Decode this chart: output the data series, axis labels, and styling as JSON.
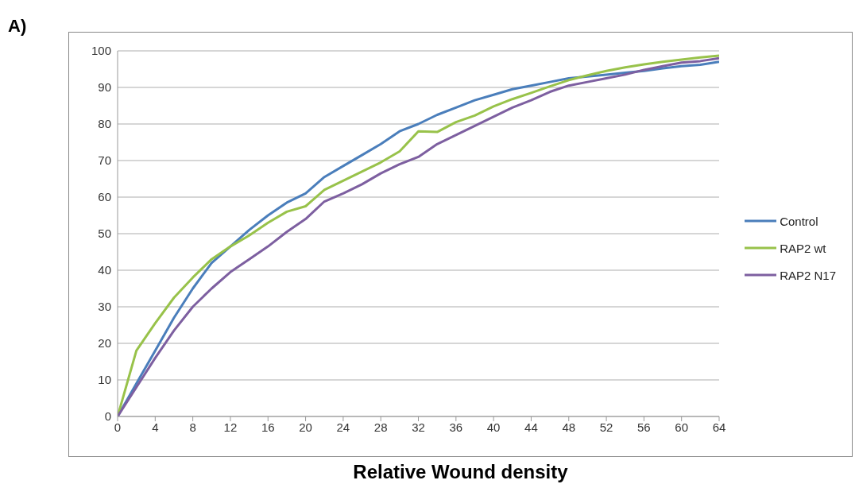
{
  "chart_data": {
    "type": "line",
    "xlabel": "Relative Wound density",
    "annotations": [
      "A)"
    ],
    "x": [
      0,
      2,
      4,
      6,
      8,
      10,
      12,
      14,
      16,
      18,
      20,
      22,
      24,
      26,
      28,
      30,
      32,
      34,
      36,
      38,
      40,
      42,
      44,
      46,
      48,
      50,
      52,
      54,
      56,
      58,
      60,
      62,
      64
    ],
    "series": [
      {
        "name": "Control",
        "color": "#4a7ebb",
        "values": [
          0,
          9,
          18,
          27,
          35,
          42,
          46.5,
          51,
          55,
          58.5,
          61,
          65.5,
          68.5,
          71.5,
          74.5,
          78,
          80,
          82.5,
          84.5,
          86.5,
          88,
          89.5,
          90.5,
          91.5,
          92.5,
          93,
          93.5,
          94,
          94.5,
          95.2,
          95.8,
          96.2,
          97
        ]
      },
      {
        "name": "RAP2 wt",
        "color": "#98c24a",
        "values": [
          0,
          18,
          25.5,
          32.5,
          38,
          43,
          46.5,
          49.5,
          53,
          56,
          57.5,
          62,
          64.5,
          67,
          69.5,
          72.5,
          78,
          77.8,
          80.5,
          82.3,
          84.8,
          86.8,
          88.5,
          90.3,
          92,
          93.3,
          94.5,
          95.5,
          96.3,
          97,
          97.6,
          98.2,
          98.7
        ]
      },
      {
        "name": "RAP2 N17",
        "color": "#7d5fa0",
        "values": [
          0,
          8,
          16,
          23.5,
          30,
          35,
          39.5,
          43,
          46.5,
          50.5,
          54,
          58.8,
          61,
          63.5,
          66.5,
          69,
          71,
          74.5,
          77,
          79.5,
          82,
          84.5,
          86.5,
          88.8,
          90.5,
          91.5,
          92.5,
          93.5,
          94.8,
          95.8,
          96.8,
          97.2,
          98
        ]
      }
    ],
    "xlim": [
      0,
      64
    ],
    "xticks": [
      0,
      4,
      8,
      12,
      16,
      20,
      24,
      28,
      32,
      36,
      40,
      44,
      48,
      52,
      56,
      60,
      64
    ],
    "ylim": [
      0,
      100
    ],
    "yticks": [
      0,
      10,
      20,
      30,
      40,
      50,
      60,
      70,
      80,
      90,
      100
    ],
    "grid": "y",
    "legend": "right",
    "marker": "none",
    "line_style": "solid"
  }
}
